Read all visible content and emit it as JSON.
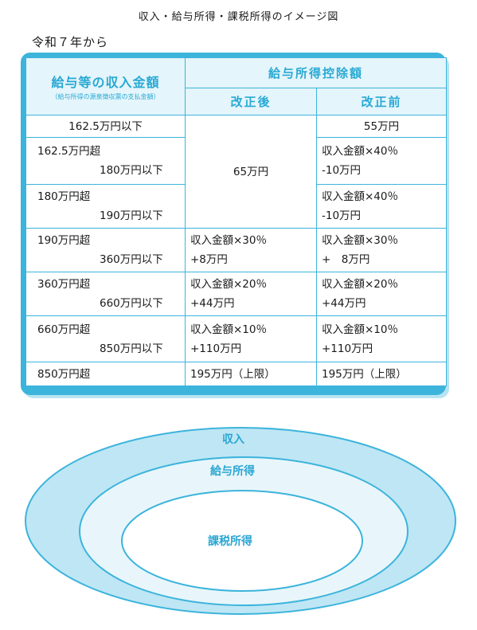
{
  "page_title": "収入・給与所得・課税所得のイメージ図",
  "subtitle": "令和７年から",
  "table": {
    "header_income": "給与等の収入金額",
    "header_income_note": "（給与所得の源泉徴収票の支払金額）",
    "header_deduction": "給与所得控除額",
    "header_after": "改正後",
    "header_before": "改正前",
    "rows": [
      {
        "income": "162.5万円以下",
        "before": "55万円"
      },
      {
        "income": "162.5万円超",
        "income2": "180万円以下",
        "after": "65万円",
        "before": "収入金額×40％",
        "before2": "-10万円"
      },
      {
        "income": "180万円超",
        "income2": "190万円以下",
        "before": "収入金額×40％",
        "before2": "-10万円"
      },
      {
        "income": "190万円超",
        "income2": "360万円以下",
        "after": "収入金額×30％",
        "after2": "+8万円",
        "before": "収入金額×30％",
        "before2": "+　8万円"
      },
      {
        "income": "360万円超",
        "income2": "660万円以下",
        "after": "収入金額×20％",
        "after2": "+44万円",
        "before": "収入金額×20％",
        "before2": "+44万円"
      },
      {
        "income": "660万円超",
        "income2": "850万円以下",
        "after": "収入金額×10％",
        "after2": "+110万円",
        "before": "収入金額×10％",
        "before2": "+110万円"
      },
      {
        "income": "850万円超",
        "after": "195万円（上限）",
        "before": "195万円（上限）"
      }
    ]
  },
  "diagram": {
    "outer_label": "収入",
    "middle_label": "給与所得",
    "inner_label": "課税所得",
    "colors": {
      "outer": "#bfe6f4",
      "middle": "#e8f6fb",
      "inner": "#ffffff",
      "stroke": "#3cb4dc",
      "text": "#2aa6d2"
    }
  }
}
